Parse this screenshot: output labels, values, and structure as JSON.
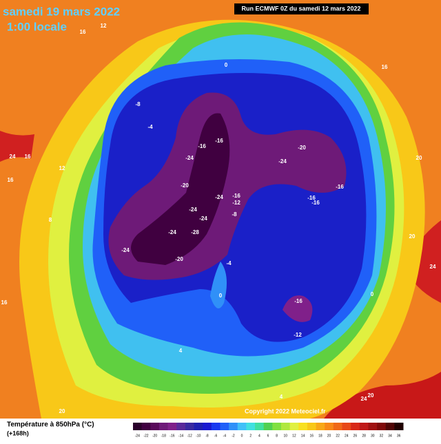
{
  "header": {
    "date": "samedi 19 mars 2022",
    "time": "1:00 locale",
    "run": "Run ECMWF 0Z du samedi 12 mars 2022"
  },
  "footer": {
    "title": "Température à 850hPa (°C)",
    "lead": "(+168h)",
    "copyright": "Copyright 2022 Meteociel.fr"
  },
  "legend": {
    "ticks": [
      -24,
      -22,
      -20,
      -18,
      -16,
      -14,
      -12,
      -10,
      -8,
      -6,
      -4,
      -2,
      0,
      2,
      4,
      6,
      8,
      10,
      12,
      14,
      16,
      18,
      20,
      22,
      24,
      26,
      28,
      30,
      32,
      34,
      36
    ],
    "colors": [
      "#2a002a",
      "#400040",
      "#5a0a5a",
      "#6e1a78",
      "#80208a",
      "#5a2a9a",
      "#3a2aa0",
      "#2020b0",
      "#1a1ad0",
      "#1a3af0",
      "#2060f8",
      "#3090f8",
      "#40c0f8",
      "#40e0e0",
      "#40e0a0",
      "#50d050",
      "#80e040",
      "#b0e840",
      "#e0f040",
      "#f8e020",
      "#f8c818",
      "#f8a818",
      "#f88818",
      "#f06818",
      "#e84818",
      "#d82818",
      "#c01818",
      "#a01010",
      "#800808",
      "#500404",
      "#200000"
    ]
  },
  "contour_labels": [
    "0",
    "-8",
    "-4",
    "-16",
    "-16",
    "-20",
    "-24",
    "-24",
    "-20",
    "-24",
    "-16",
    "-12",
    "-24",
    "-24",
    "-8",
    "-24",
    "-28",
    "-24",
    "-20",
    "-16",
    "-16",
    "-16",
    "-16",
    "-12",
    "-4",
    "0",
    "0",
    "16",
    "12",
    "16",
    "24",
    "16",
    "12",
    "16",
    "8",
    "20",
    "20",
    "24",
    "16",
    "20",
    "24",
    "20",
    "4",
    "4"
  ]
}
